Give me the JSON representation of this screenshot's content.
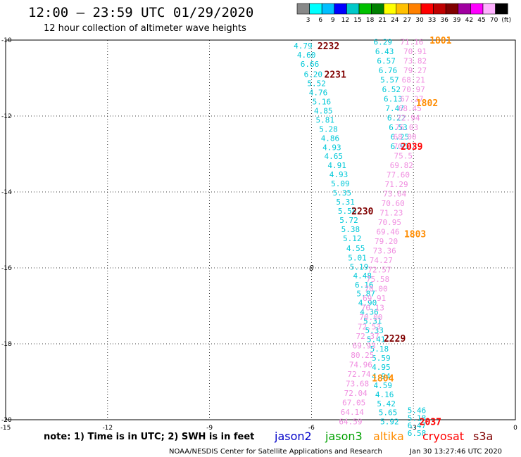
{
  "title": "12:00 – 23:59 UTC 01/29/2020",
  "subtitle": "12 hour collection of altimeter wave heights",
  "colorbar": {
    "labels": [
      "3",
      "6",
      "9",
      "12",
      "15",
      "18",
      "21",
      "24",
      "27",
      "30",
      "33",
      "36",
      "39",
      "42",
      "45",
      "70",
      "(ft)"
    ],
    "colors": [
      "#888888",
      "#00ffff",
      "#00bfff",
      "#0000ff",
      "#00c8c8",
      "#00c000",
      "#008000",
      "#ffff00",
      "#ffc000",
      "#ff8000",
      "#ff0000",
      "#c00000",
      "#800000",
      "#a000a0",
      "#ff00ff",
      "#ffb0ff",
      "#000000"
    ]
  },
  "chart_data": {
    "type": "scatter",
    "xlim": [
      -15,
      0
    ],
    "ylim": [
      -20,
      -10
    ],
    "x_ticks": [
      "-15",
      "-12",
      "-9",
      "-6",
      "-3",
      "0"
    ],
    "y_ticks": [
      "-10",
      "-12",
      "-14",
      "-16",
      "-18",
      "-20"
    ],
    "grid": true,
    "series": [
      {
        "color": "#00c8d8",
        "points": [
          {
            "x": -6.25,
            "y": -10.15,
            "v": "4.79"
          },
          {
            "x": -6.15,
            "y": -10.39,
            "v": "4.60"
          },
          {
            "x": -6.05,
            "y": -10.63,
            "v": "6.66"
          },
          {
            "x": -5.95,
            "y": -10.9,
            "v": "6.20"
          },
          {
            "x": -5.85,
            "y": -11.14,
            "v": "5.52"
          },
          {
            "x": -5.8,
            "y": -11.38,
            "v": "4.76"
          },
          {
            "x": -5.7,
            "y": -11.62,
            "v": "5.16"
          },
          {
            "x": -5.65,
            "y": -11.86,
            "v": "4.85"
          },
          {
            "x": -5.6,
            "y": -12.1,
            "v": "5.81"
          },
          {
            "x": -5.5,
            "y": -12.34,
            "v": "5.28"
          },
          {
            "x": -5.45,
            "y": -12.58,
            "v": "4.86"
          },
          {
            "x": -5.4,
            "y": -12.82,
            "v": "4.93"
          },
          {
            "x": -5.35,
            "y": -13.06,
            "v": "4.65"
          },
          {
            "x": -5.25,
            "y": -13.3,
            "v": "4.91"
          },
          {
            "x": -5.2,
            "y": -13.54,
            "v": "4.93"
          },
          {
            "x": -5.15,
            "y": -13.78,
            "v": "5.09"
          },
          {
            "x": -5.1,
            "y": -14.02,
            "v": "5.35"
          },
          {
            "x": -5.0,
            "y": -14.26,
            "v": "5.31"
          },
          {
            "x": -4.95,
            "y": -14.5,
            "v": "5.58"
          },
          {
            "x": -4.9,
            "y": -14.74,
            "v": "5.72"
          },
          {
            "x": -4.85,
            "y": -14.98,
            "v": "5.38"
          },
          {
            "x": -4.8,
            "y": -15.22,
            "v": "5.12"
          },
          {
            "x": -4.7,
            "y": -15.48,
            "v": "4.55"
          },
          {
            "x": -4.65,
            "y": -15.73,
            "v": "5.01"
          },
          {
            "x": -4.6,
            "y": -15.97,
            "v": "5.19"
          },
          {
            "x": -4.5,
            "y": -16.2,
            "v": "4.48"
          },
          {
            "x": -4.45,
            "y": -16.44,
            "v": "6.16"
          },
          {
            "x": -4.4,
            "y": -16.68,
            "v": "5.87"
          },
          {
            "x": -4.35,
            "y": -16.92,
            "v": "4.90"
          },
          {
            "x": -4.3,
            "y": -17.16,
            "v": "4.36"
          },
          {
            "x": -4.2,
            "y": -17.4,
            "v": "5.31"
          },
          {
            "x": -4.15,
            "y": -17.64,
            "v": "5.33"
          },
          {
            "x": -4.1,
            "y": -17.88,
            "v": "5.41"
          },
          {
            "x": -4.0,
            "y": -18.13,
            "v": "5.18"
          },
          {
            "x": -3.95,
            "y": -18.37,
            "v": "5.59"
          },
          {
            "x": -3.95,
            "y": -18.61,
            "v": "4.95"
          },
          {
            "x": -3.95,
            "y": -18.85,
            "v": "4.94"
          },
          {
            "x": -3.9,
            "y": -19.09,
            "v": "4.59"
          },
          {
            "x": -3.85,
            "y": -19.33,
            "v": "4.16"
          },
          {
            "x": -3.8,
            "y": -19.57,
            "v": "5.42"
          },
          {
            "x": -3.75,
            "y": -19.81,
            "v": "5.65"
          },
          {
            "x": -3.7,
            "y": -20.05,
            "v": "5.92"
          },
          {
            "x": -3.9,
            "y": -10.05,
            "v": "6.29"
          },
          {
            "x": -3.85,
            "y": -10.3,
            "v": "6.43"
          },
          {
            "x": -3.8,
            "y": -10.55,
            "v": "6.57"
          },
          {
            "x": -3.75,
            "y": -10.8,
            "v": "6.76"
          },
          {
            "x": -3.7,
            "y": -11.05,
            "v": "5.57"
          },
          {
            "x": -3.65,
            "y": -11.3,
            "v": "6.52"
          },
          {
            "x": -3.6,
            "y": -11.55,
            "v": "6.13"
          },
          {
            "x": -3.55,
            "y": -11.8,
            "v": "7.47"
          },
          {
            "x": -3.5,
            "y": -12.05,
            "v": "6.22"
          },
          {
            "x": -3.45,
            "y": -12.3,
            "v": "6.53"
          },
          {
            "x": -3.4,
            "y": -12.55,
            "v": "6.25"
          },
          {
            "x": -3.4,
            "y": -12.8,
            "v": "6.91"
          },
          {
            "x": -2.9,
            "y": -19.75,
            "v": "5.46"
          },
          {
            "x": -2.9,
            "y": -19.95,
            "v": "5.18"
          },
          {
            "x": -2.9,
            "y": -20.15,
            "v": "6.47"
          },
          {
            "x": -2.9,
            "y": -20.35,
            "v": "6.58"
          }
        ]
      },
      {
        "color": "#f08ee0",
        "points": [
          {
            "x": -3.05,
            "y": -10.05,
            "v": "71.16"
          },
          {
            "x": -2.95,
            "y": -10.3,
            "v": "70.91"
          },
          {
            "x": -2.95,
            "y": -10.55,
            "v": "73.82"
          },
          {
            "x": -2.95,
            "y": -10.8,
            "v": "79.27"
          },
          {
            "x": -3.0,
            "y": -11.05,
            "v": "68.21"
          },
          {
            "x": -3.0,
            "y": -11.3,
            "v": "70.97"
          },
          {
            "x": -3.05,
            "y": -11.55,
            "v": "67.27"
          },
          {
            "x": -3.1,
            "y": -11.8,
            "v": "68.45"
          },
          {
            "x": -3.15,
            "y": -12.05,
            "v": "72.94"
          },
          {
            "x": -3.2,
            "y": -12.3,
            "v": "76.03"
          },
          {
            "x": -3.25,
            "y": -12.55,
            "v": "68.00"
          },
          {
            "x": -3.25,
            "y": -12.8,
            "v": "70.43"
          },
          {
            "x": -3.3,
            "y": -13.05,
            "v": "75.5"
          },
          {
            "x": -3.35,
            "y": -13.3,
            "v": "69.82"
          },
          {
            "x": -3.45,
            "y": -13.55,
            "v": "77.60"
          },
          {
            "x": -3.5,
            "y": -13.8,
            "v": "71.29"
          },
          {
            "x": -3.55,
            "y": -14.05,
            "v": "73.64"
          },
          {
            "x": -3.6,
            "y": -14.3,
            "v": "70.60"
          },
          {
            "x": -3.65,
            "y": -14.55,
            "v": "71.23"
          },
          {
            "x": -3.7,
            "y": -14.8,
            "v": "70.95"
          },
          {
            "x": -3.75,
            "y": -15.05,
            "v": "69.46"
          },
          {
            "x": -3.8,
            "y": -15.3,
            "v": "79.20"
          },
          {
            "x": -3.85,
            "y": -15.55,
            "v": "73.36"
          },
          {
            "x": -3.95,
            "y": -15.8,
            "v": "74.27"
          },
          {
            "x": -4.0,
            "y": -16.05,
            "v": "72.57"
          },
          {
            "x": -4.05,
            "y": -16.3,
            "v": "75.58"
          },
          {
            "x": -4.1,
            "y": -16.55,
            "v": "70.00"
          },
          {
            "x": -4.15,
            "y": -16.8,
            "v": "69.91"
          },
          {
            "x": -4.2,
            "y": -17.05,
            "v": "70.13"
          },
          {
            "x": -4.25,
            "y": -17.3,
            "v": "70.00"
          },
          {
            "x": -4.3,
            "y": -17.55,
            "v": "72.53"
          },
          {
            "x": -4.35,
            "y": -17.8,
            "v": "72.37"
          },
          {
            "x": -4.45,
            "y": -18.05,
            "v": "69.93"
          },
          {
            "x": -4.5,
            "y": -18.3,
            "v": "80.25"
          },
          {
            "x": -4.55,
            "y": -18.55,
            "v": "74.96"
          },
          {
            "x": -4.6,
            "y": -18.8,
            "v": "72.74"
          },
          {
            "x": -4.65,
            "y": -19.05,
            "v": "73.68"
          },
          {
            "x": -4.7,
            "y": -19.3,
            "v": "72.04"
          },
          {
            "x": -4.75,
            "y": -19.55,
            "v": "67.05"
          },
          {
            "x": -4.8,
            "y": -19.8,
            "v": "64.14"
          },
          {
            "x": -4.85,
            "y": -20.05,
            "v": "64.59"
          }
        ]
      }
    ],
    "time_labels": [
      {
        "x": -5.5,
        "y": -10.15,
        "t": "2232",
        "color": "#800000"
      },
      {
        "x": -5.3,
        "y": -10.9,
        "t": "2231",
        "color": "#800000"
      },
      {
        "x": -4.5,
        "y": -14.5,
        "t": "2230",
        "color": "#800000"
      },
      {
        "x": -3.55,
        "y": -17.85,
        "t": "2229",
        "color": "#800000"
      },
      {
        "x": -2.2,
        "y": -10.0,
        "t": "1801",
        "color": "#ff8c00"
      },
      {
        "x": -2.6,
        "y": -11.65,
        "t": "1802",
        "color": "#ff8c00"
      },
      {
        "x": -2.95,
        "y": -15.1,
        "t": "1803",
        "color": "#ff8c00"
      },
      {
        "x": -3.9,
        "y": -18.9,
        "t": "1804",
        "color": "#ff8c00"
      },
      {
        "x": -3.05,
        "y": -12.8,
        "t": "2039",
        "color": "#ff0000"
      },
      {
        "x": -2.5,
        "y": -20.05,
        "t": "2037",
        "color": "#ff0000"
      }
    ],
    "marker_label": {
      "x": -6.0,
      "y": -16.0,
      "t": "0"
    }
  },
  "note": "note: 1) Time is in UTC; 2) SWH is in feet",
  "satellites": [
    {
      "name": "jason2",
      "color": "#0000c8"
    },
    {
      "name": "jason3",
      "color": "#00a000"
    },
    {
      "name": "altika",
      "color": "#ff8c00"
    },
    {
      "name": "cryosat",
      "color": "#ff0000"
    },
    {
      "name": "s3a",
      "color": "#800000"
    }
  ],
  "credit": "NOAA/NESDIS Center for Satellite Applications and Research",
  "timestamp": "Jan 30 13:27:46 UTC 2020"
}
